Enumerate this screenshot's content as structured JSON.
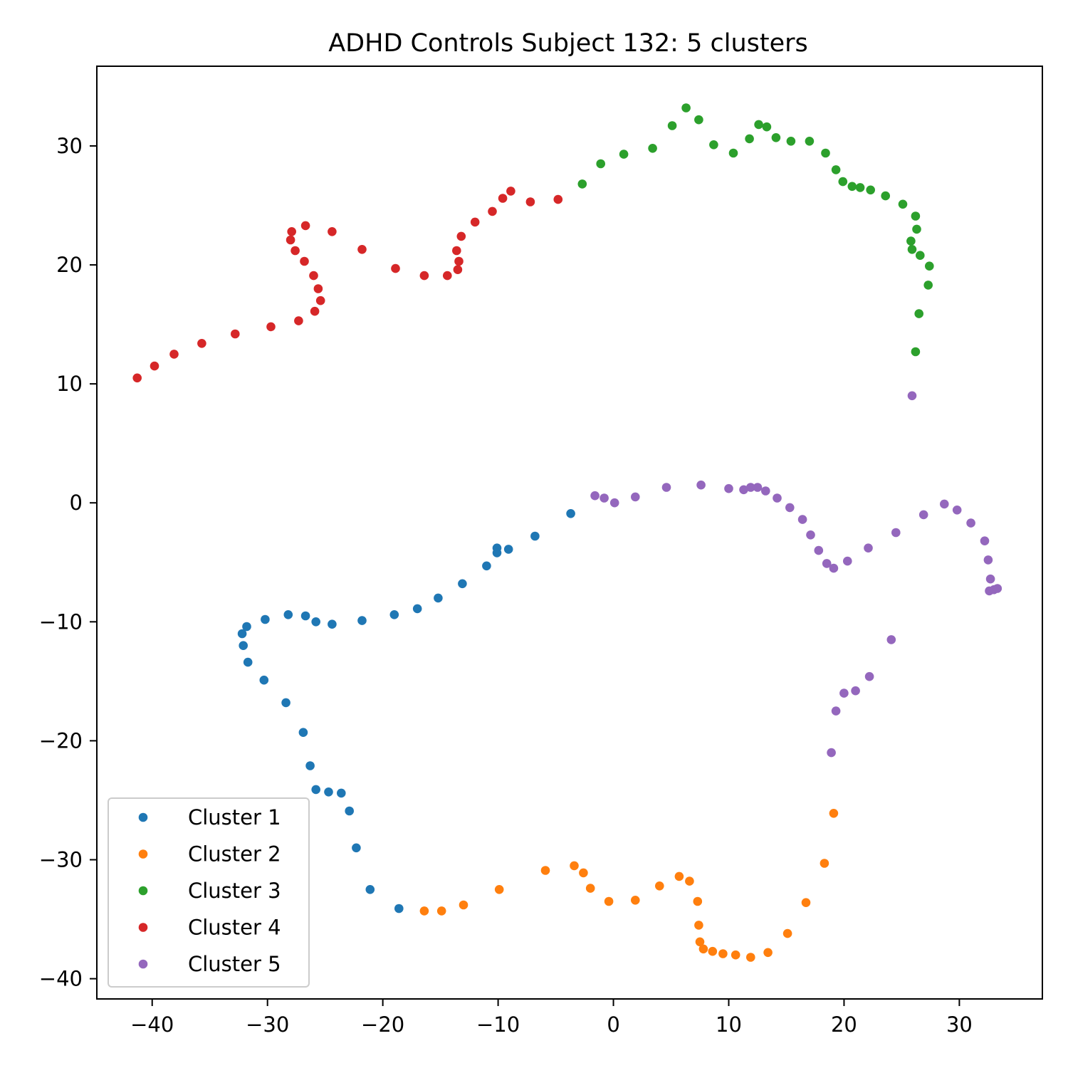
{
  "chart_data": {
    "type": "scatter",
    "title": "ADHD Controls Subject 132: 5 clusters",
    "xlabel": "",
    "ylabel": "",
    "xlim": [
      -44.8,
      37.2
    ],
    "ylim": [
      -41.7,
      36.7
    ],
    "xticks": [
      -40,
      -30,
      -20,
      -10,
      0,
      10,
      20,
      30
    ],
    "yticks": [
      -40,
      -30,
      -20,
      -10,
      0,
      10,
      20,
      30
    ],
    "grid": false,
    "legend_position": "lower-left",
    "series": [
      {
        "name": "Cluster 1",
        "color": "#1f77b4",
        "points": [
          [
            -3.7,
            -0.9
          ],
          [
            -6.8,
            -2.8
          ],
          [
            -9.1,
            -3.9
          ],
          [
            -10.1,
            -3.8
          ],
          [
            -10.1,
            -4.2
          ],
          [
            -11.0,
            -5.3
          ],
          [
            -13.1,
            -6.8
          ],
          [
            -15.2,
            -8.0
          ],
          [
            -17.0,
            -8.9
          ],
          [
            -19.0,
            -9.4
          ],
          [
            -21.8,
            -9.9
          ],
          [
            -24.4,
            -10.2
          ],
          [
            -25.8,
            -10.0
          ],
          [
            -26.7,
            -9.5
          ],
          [
            -28.2,
            -9.4
          ],
          [
            -30.2,
            -9.8
          ],
          [
            -31.8,
            -10.4
          ],
          [
            -32.2,
            -11.0
          ],
          [
            -32.1,
            -12.0
          ],
          [
            -31.7,
            -13.4
          ],
          [
            -30.3,
            -14.9
          ],
          [
            -28.4,
            -16.8
          ],
          [
            -26.9,
            -19.3
          ],
          [
            -26.3,
            -22.1
          ],
          [
            -25.8,
            -24.1
          ],
          [
            -24.7,
            -24.3
          ],
          [
            -23.6,
            -24.4
          ],
          [
            -22.9,
            -25.9
          ],
          [
            -22.3,
            -29.0
          ],
          [
            -21.1,
            -32.5
          ],
          [
            -18.6,
            -34.1
          ]
        ]
      },
      {
        "name": "Cluster 2",
        "color": "#ff7f0e",
        "points": [
          [
            -16.4,
            -34.3
          ],
          [
            -14.9,
            -34.3
          ],
          [
            -13.0,
            -33.8
          ],
          [
            -9.9,
            -32.5
          ],
          [
            -5.9,
            -30.9
          ],
          [
            -3.4,
            -30.5
          ],
          [
            -2.6,
            -31.1
          ],
          [
            -2.0,
            -32.4
          ],
          [
            -0.4,
            -33.5
          ],
          [
            1.9,
            -33.4
          ],
          [
            4.0,
            -32.2
          ],
          [
            5.7,
            -31.4
          ],
          [
            6.6,
            -31.8
          ],
          [
            7.3,
            -33.5
          ],
          [
            7.4,
            -35.5
          ],
          [
            7.5,
            -36.9
          ],
          [
            7.8,
            -37.5
          ],
          [
            8.6,
            -37.7
          ],
          [
            9.5,
            -37.9
          ],
          [
            10.6,
            -38.0
          ],
          [
            11.9,
            -38.2
          ],
          [
            13.4,
            -37.8
          ],
          [
            15.1,
            -36.2
          ],
          [
            16.7,
            -33.6
          ],
          [
            18.3,
            -30.3
          ],
          [
            19.1,
            -26.1
          ]
        ]
      },
      {
        "name": "Cluster 3",
        "color": "#2ca02c",
        "points": [
          [
            -2.7,
            26.8
          ],
          [
            -1.1,
            28.5
          ],
          [
            0.9,
            29.3
          ],
          [
            3.4,
            29.8
          ],
          [
            5.1,
            31.7
          ],
          [
            6.3,
            33.2
          ],
          [
            7.4,
            32.2
          ],
          [
            8.7,
            30.1
          ],
          [
            10.4,
            29.4
          ],
          [
            11.8,
            30.6
          ],
          [
            12.6,
            31.8
          ],
          [
            13.3,
            31.6
          ],
          [
            14.1,
            30.7
          ],
          [
            15.4,
            30.4
          ],
          [
            17.0,
            30.4
          ],
          [
            18.4,
            29.4
          ],
          [
            19.3,
            28.0
          ],
          [
            19.9,
            27.0
          ],
          [
            20.7,
            26.6
          ],
          [
            21.4,
            26.5
          ],
          [
            22.3,
            26.3
          ],
          [
            23.6,
            25.8
          ],
          [
            25.1,
            25.1
          ],
          [
            26.2,
            24.1
          ],
          [
            26.3,
            23.0
          ],
          [
            25.8,
            22.0
          ],
          [
            25.9,
            21.3
          ],
          [
            26.6,
            20.8
          ],
          [
            27.4,
            19.9
          ],
          [
            27.3,
            18.3
          ],
          [
            26.5,
            15.9
          ],
          [
            26.2,
            12.7
          ]
        ]
      },
      {
        "name": "Cluster 4",
        "color": "#d62728",
        "points": [
          [
            -41.3,
            10.5
          ],
          [
            -39.8,
            11.5
          ],
          [
            -38.1,
            12.5
          ],
          [
            -35.7,
            13.4
          ],
          [
            -32.8,
            14.2
          ],
          [
            -29.7,
            14.8
          ],
          [
            -27.3,
            15.3
          ],
          [
            -25.9,
            16.1
          ],
          [
            -25.4,
            17.0
          ],
          [
            -25.6,
            18.0
          ],
          [
            -26.0,
            19.1
          ],
          [
            -26.8,
            20.3
          ],
          [
            -27.6,
            21.2
          ],
          [
            -28.0,
            22.1
          ],
          [
            -27.9,
            22.8
          ],
          [
            -26.7,
            23.3
          ],
          [
            -24.4,
            22.8
          ],
          [
            -21.8,
            21.3
          ],
          [
            -18.9,
            19.7
          ],
          [
            -16.4,
            19.1
          ],
          [
            -14.4,
            19.1
          ],
          [
            -13.5,
            19.6
          ],
          [
            -13.4,
            20.3
          ],
          [
            -13.6,
            21.2
          ],
          [
            -13.2,
            22.4
          ],
          [
            -12.0,
            23.6
          ],
          [
            -10.5,
            24.5
          ],
          [
            -9.6,
            25.6
          ],
          [
            -8.9,
            26.2
          ],
          [
            -7.2,
            25.3
          ],
          [
            -4.8,
            25.5
          ]
        ]
      },
      {
        "name": "Cluster 5",
        "color": "#9467bd",
        "points": [
          [
            25.9,
            9.0
          ],
          [
            -1.6,
            0.6
          ],
          [
            -0.8,
            0.4
          ],
          [
            0.1,
            0.0
          ],
          [
            1.9,
            0.5
          ],
          [
            4.6,
            1.3
          ],
          [
            7.6,
            1.5
          ],
          [
            10.0,
            1.2
          ],
          [
            11.3,
            1.1
          ],
          [
            11.9,
            1.3
          ],
          [
            12.5,
            1.3
          ],
          [
            13.2,
            1.0
          ],
          [
            14.2,
            0.4
          ],
          [
            15.3,
            -0.4
          ],
          [
            16.4,
            -1.4
          ],
          [
            17.1,
            -2.7
          ],
          [
            17.8,
            -4.0
          ],
          [
            18.5,
            -5.1
          ],
          [
            19.1,
            -5.5
          ],
          [
            20.3,
            -4.9
          ],
          [
            22.1,
            -3.8
          ],
          [
            24.5,
            -2.5
          ],
          [
            26.9,
            -1.0
          ],
          [
            28.7,
            -0.1
          ],
          [
            29.8,
            -0.6
          ],
          [
            31.0,
            -1.7
          ],
          [
            32.2,
            -3.2
          ],
          [
            32.5,
            -4.8
          ],
          [
            32.7,
            -6.4
          ],
          [
            32.6,
            -7.4
          ],
          [
            33.0,
            -7.3
          ],
          [
            33.3,
            -7.2
          ],
          [
            24.1,
            -11.5
          ],
          [
            22.2,
            -14.6
          ],
          [
            21.0,
            -15.8
          ],
          [
            20.0,
            -16.0
          ],
          [
            19.3,
            -17.5
          ],
          [
            18.9,
            -21.0
          ]
        ]
      }
    ]
  }
}
